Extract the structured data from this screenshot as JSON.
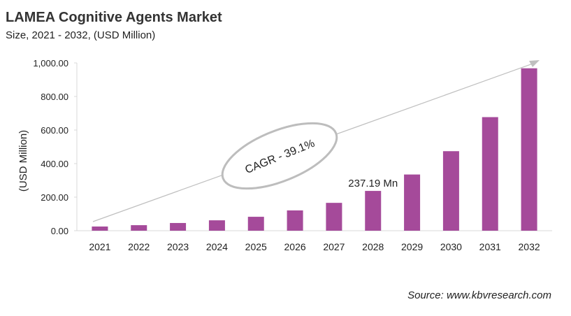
{
  "chart_data": {
    "type": "bar",
    "title": "LAMEA Cognitive Agents Market",
    "subtitle": "Size, 2021 - 2032, (USD Million)",
    "ylabel": "(USD Million)",
    "xlabel": "",
    "categories": [
      "2021",
      "2022",
      "2023",
      "2024",
      "2025",
      "2026",
      "2027",
      "2028",
      "2029",
      "2030",
      "2031",
      "2032"
    ],
    "values": [
      25,
      33,
      46,
      62,
      83,
      121,
      166,
      237.19,
      335,
      474,
      677,
      968
    ],
    "ylim": [
      0,
      1000
    ],
    "yticks": [
      "0.00",
      "200.00",
      "400.00",
      "600.00",
      "800.00",
      "1,000.00"
    ],
    "grid": false,
    "bar_color": "#A54A9A",
    "annotations": {
      "data_label": "237.19 Mn",
      "cagr": "CAGR - 39.1%"
    },
    "source": "Source: www.kbvresearch.com"
  }
}
